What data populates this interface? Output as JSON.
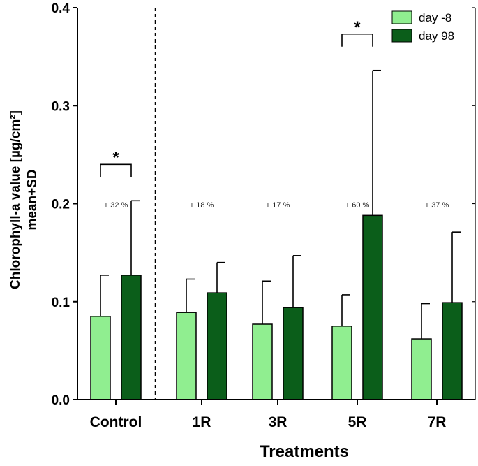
{
  "chart_data": {
    "type": "bar",
    "title": "",
    "xlabel": "Treatments",
    "ylabel_line1": "Chlorophyll-a value [µg/cm²]",
    "ylabel_line2": "mean+SD",
    "ylim": [
      0,
      0.4
    ],
    "yticks": [
      {
        "value": 0.0,
        "label": "0.0"
      },
      {
        "value": 0.1,
        "label": "0.1"
      },
      {
        "value": 0.2,
        "label": "0.2"
      },
      {
        "value": 0.3,
        "label": "0.3"
      },
      {
        "value": 0.4,
        "label": "0.4"
      }
    ],
    "categories": [
      "Control",
      "1R",
      "3R",
      "5R",
      "7R"
    ],
    "series": [
      {
        "name": "day -8",
        "color": "#90ee90",
        "values": [
          0.085,
          0.089,
          0.077,
          0.075,
          0.062
        ],
        "sd": [
          0.042,
          0.034,
          0.044,
          0.032,
          0.036
        ]
      },
      {
        "name": "day 98",
        "color": "#0b5e1a",
        "values": [
          0.127,
          0.109,
          0.094,
          0.188,
          0.099
        ],
        "sd": [
          0.076,
          0.031,
          0.053,
          0.148,
          0.072
        ]
      }
    ],
    "change_labels": [
      "+ 32 %",
      "+ 18 %",
      "+ 17 %",
      "+ 60 %",
      "+ 37 %"
    ],
    "significance": [
      {
        "category": "Control",
        "label": "*"
      },
      {
        "category": "5R",
        "label": "*"
      }
    ],
    "separator_after_category": "Control",
    "legend_position": "top-right"
  }
}
